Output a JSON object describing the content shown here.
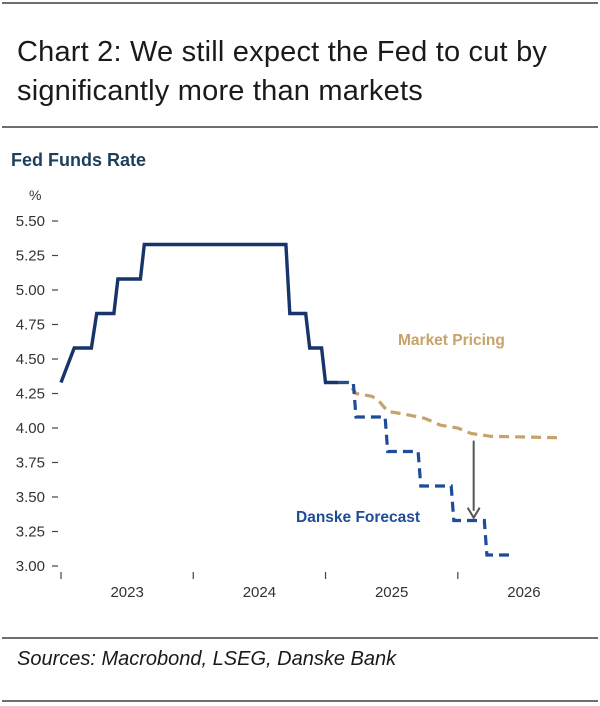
{
  "header": {
    "title": "Chart 2: We still expect the Fed to cut by significantly more than markets"
  },
  "footer": {
    "sources": "Sources: Macrobond, LSEG, Danske Bank"
  },
  "colors": {
    "fed": "#17346b",
    "danske": "#1f4c97",
    "market": "#c7a26a",
    "axis": "#444444",
    "subtitle": "#1d3f5b",
    "arrow": "#555555"
  },
  "chart_data": {
    "type": "line",
    "title": "Fed Funds Rate",
    "ylabel": "%",
    "xlabel": "",
    "xlim": [
      2022.45,
      2026.2
    ],
    "ylim": [
      3.0,
      5.5
    ],
    "y_ticks": [
      "5.50",
      "5.25",
      "5.00",
      "4.75",
      "4.50",
      "4.25",
      "4.00",
      "3.75",
      "3.50",
      "3.25",
      "3.00"
    ],
    "x_tick_positions": [
      2022.45,
      2023.45,
      2024.45,
      2025.45
    ],
    "x_labels": [
      {
        "label": "2023",
        "x": 2022.95
      },
      {
        "label": "2024",
        "x": 2023.95
      },
      {
        "label": "2025",
        "x": 2024.95
      },
      {
        "label": "2026",
        "x": 2025.95
      }
    ],
    "series": [
      {
        "name": "Fed Funds Rate",
        "style": "solid",
        "step": true,
        "points": [
          [
            2022.45,
            4.33
          ],
          [
            2022.55,
            4.58
          ],
          [
            2022.68,
            4.58
          ],
          [
            2022.72,
            4.83
          ],
          [
            2022.85,
            4.83
          ],
          [
            2022.88,
            5.08
          ],
          [
            2023.05,
            5.08
          ],
          [
            2023.08,
            5.33
          ],
          [
            2024.15,
            5.33
          ],
          [
            2024.18,
            4.83
          ],
          [
            2024.3,
            4.83
          ],
          [
            2024.33,
            4.58
          ],
          [
            2024.42,
            4.58
          ],
          [
            2024.45,
            4.33
          ],
          [
            2024.55,
            4.33
          ]
        ]
      },
      {
        "name": "Market Pricing",
        "label": "Market Pricing",
        "style": "dashed",
        "step": true,
        "points": [
          [
            2024.55,
            4.33
          ],
          [
            2024.62,
            4.33
          ],
          [
            2024.68,
            4.25
          ],
          [
            2024.8,
            4.23
          ],
          [
            2024.85,
            4.2
          ],
          [
            2024.92,
            4.12
          ],
          [
            2025.05,
            4.1
          ],
          [
            2025.2,
            4.07
          ],
          [
            2025.32,
            4.02
          ],
          [
            2025.45,
            4.0
          ],
          [
            2025.55,
            3.96
          ],
          [
            2025.7,
            3.94
          ],
          [
            2026.2,
            3.93
          ]
        ]
      },
      {
        "name": "Danske Forecast",
        "label": "Danske Forecast",
        "style": "dashed",
        "step": true,
        "points": [
          [
            2024.55,
            4.33
          ],
          [
            2024.66,
            4.33
          ],
          [
            2024.68,
            4.08
          ],
          [
            2024.9,
            4.08
          ],
          [
            2024.92,
            3.83
          ],
          [
            2025.15,
            3.83
          ],
          [
            2025.17,
            3.58
          ],
          [
            2025.4,
            3.58
          ],
          [
            2025.42,
            3.33
          ],
          [
            2025.65,
            3.33
          ],
          [
            2025.67,
            3.08
          ],
          [
            2025.85,
            3.08
          ]
        ]
      }
    ],
    "annotations": [
      {
        "text": "Market Pricing",
        "series": "Market Pricing"
      },
      {
        "text": "Danske Forecast",
        "series": "Danske Forecast"
      },
      {
        "text": "arrow",
        "from": [
          2025.57,
          3.93
        ],
        "to": [
          2025.57,
          3.35
        ]
      }
    ]
  }
}
